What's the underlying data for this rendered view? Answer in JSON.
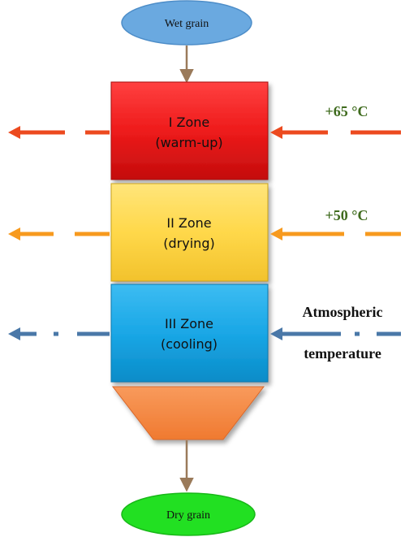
{
  "input_label": "Wet grain",
  "output_label": "Dry grain",
  "zones": [
    {
      "name": "I Zone",
      "desc": "(warm-up)",
      "color": "#ee1b1b",
      "arrow_color": "#ec4a1f"
    },
    {
      "name": "II Zone",
      "desc": "(drying)",
      "color": "#ffd84a",
      "arrow_color": "#f79a1e"
    },
    {
      "name": "III Zone",
      "desc": "(cooling)",
      "color": "#1aa7e6",
      "arrow_color": "#4a78a8"
    }
  ],
  "temperatures": {
    "zone1": "+65 °C",
    "zone2": "+50 °C",
    "zone3_line1": "Atmospheric",
    "zone3_line2": "temperature"
  },
  "colors": {
    "input_ellipse": "#6aa9e0",
    "output_ellipse": "#22e022",
    "hopper": "#f68a45",
    "flow_arrow": "#9a7a5a",
    "temp_text_hot": "#3f6b1e",
    "temp_text_atm": "#111111"
  }
}
